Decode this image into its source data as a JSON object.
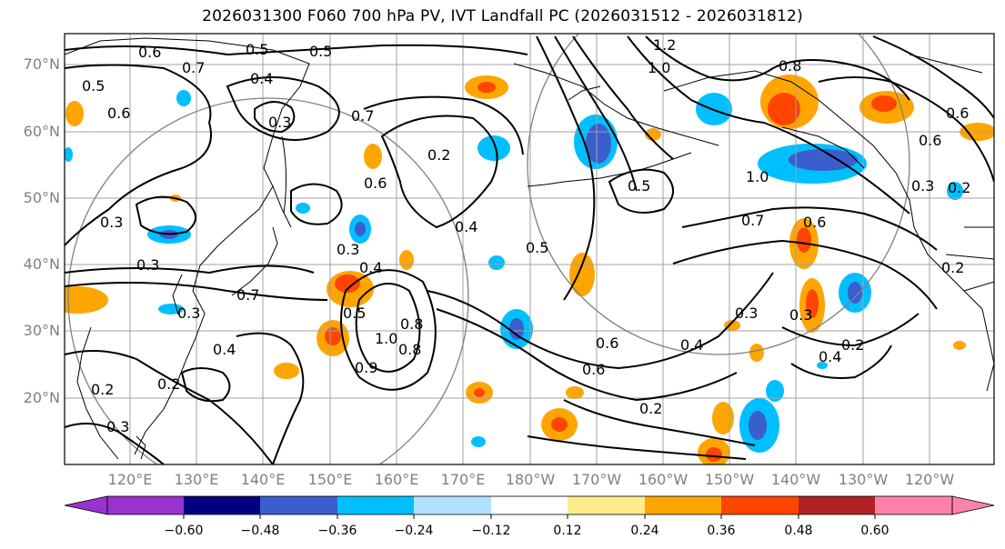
{
  "title": "2026031300 F060 700 hPa PV, IVT Landfall PC (2026031512 - 2026031812)",
  "map": {
    "lat_labels": [
      "70°N",
      "60°N",
      "50°N",
      "40°N",
      "30°N",
      "20°N"
    ],
    "lon_labels": [
      "120°E",
      "130°E",
      "140°E",
      "150°E",
      "160°E",
      "170°E",
      "180°W",
      "170°W",
      "160°W",
      "150°W",
      "140°W",
      "130°W",
      "120°W"
    ],
    "grid": true,
    "contour_labels": [
      "0.6",
      "0.5",
      "0.4",
      "0.5",
      "0.3",
      "0.7",
      "0.6",
      "0.5",
      "0.3",
      "0.7",
      "0.6",
      "0.2",
      "0.3",
      "0.4",
      "0.5",
      "0.3",
      "0.3",
      "0.7",
      "0.4",
      "0.4",
      "0.5",
      "1.0",
      "0.8",
      "0.9",
      "0.6",
      "0.6",
      "0.4",
      "0.2",
      "0.2",
      "0.3",
      "0.2",
      "1.2",
      "1.0",
      "0.8",
      "0.5",
      "1.0",
      "0.7",
      "0.6",
      "0.3",
      "0.2",
      "0.3",
      "0.6",
      "0.6",
      "0.3",
      "0.4",
      "0.2",
      "0.2",
      "0.8"
    ]
  },
  "colorbar": {
    "ticks": [
      "−0.60",
      "−0.48",
      "−0.36",
      "−0.24",
      "−0.12",
      "0.12",
      "0.24",
      "0.36",
      "0.48",
      "0.60"
    ],
    "colors": [
      "#9a32cd",
      "#000080",
      "#3a5fcd",
      "#00bfff",
      "#b0e2ff",
      "#ffffff",
      "#ffec8b",
      "#ffa500",
      "#ff4500",
      "#b22222",
      "#ff82ab"
    ]
  }
}
